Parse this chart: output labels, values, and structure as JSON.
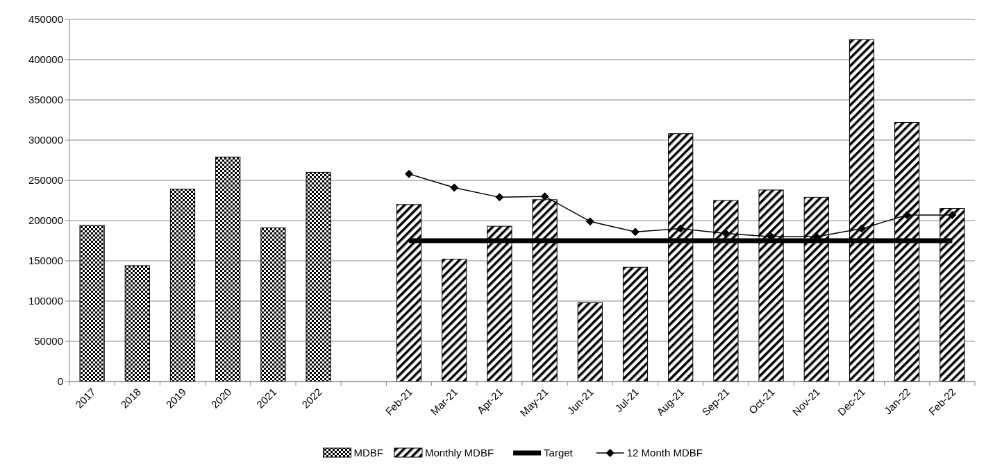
{
  "chart_data": {
    "type": "bar",
    "categories": [
      "2017",
      "2018",
      "2019",
      "2020",
      "2021",
      "2022",
      null,
      "Feb-21",
      "Mar-21",
      "Apr-21",
      "May-21",
      "Jun-21",
      "Jul-21",
      "Aug-21",
      "Sep-21",
      "Oct-21",
      "Nov-21",
      "Dec-21",
      "Jan-22",
      "Feb-22"
    ],
    "series": [
      {
        "name": "MDBF",
        "color": "#000000",
        "values": [
          194000,
          144000,
          239000,
          279000,
          191000,
          260000,
          null,
          null,
          null,
          null,
          null,
          null,
          null,
          null,
          null,
          null,
          null,
          null,
          null,
          null
        ]
      },
      {
        "name": "Monthly MDBF",
        "color": "#000000",
        "values": [
          null,
          null,
          null,
          null,
          null,
          null,
          null,
          220000,
          152000,
          193000,
          226000,
          98000,
          142000,
          308000,
          225000,
          238000,
          229000,
          425000,
          322000,
          215000
        ]
      },
      {
        "name": "Target",
        "type": "line",
        "color": "#000000",
        "marker": "none",
        "values": [
          null,
          null,
          null,
          null,
          null,
          null,
          null,
          175000,
          175000,
          175000,
          175000,
          175000,
          175000,
          175000,
          175000,
          175000,
          175000,
          175000,
          175000,
          175000
        ]
      },
      {
        "name": "12 Month MDBF",
        "type": "line",
        "color": "#000000",
        "marker": "diamond",
        "values": [
          null,
          null,
          null,
          null,
          null,
          null,
          null,
          258000,
          241000,
          229000,
          230000,
          199000,
          186000,
          190000,
          184000,
          180000,
          180000,
          190000,
          207000,
          207000
        ]
      }
    ],
    "ylim": [
      0,
      450000
    ],
    "yticks": [
      0,
      50000,
      100000,
      150000,
      200000,
      250000,
      300000,
      350000,
      400000,
      450000
    ],
    "grid": "y",
    "legend": "bottom"
  }
}
